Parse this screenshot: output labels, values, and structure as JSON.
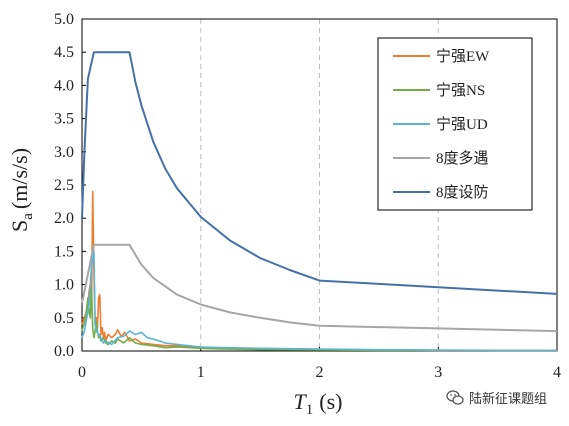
{
  "chart_data": {
    "type": "line",
    "xlabel_italic": "T",
    "xlabel_sub": "1",
    "xlabel_unit": "(s)",
    "ylabel_main": "S",
    "ylabel_sub": "a",
    "ylabel_unit": "(m/s/s)",
    "xlim": [
      0,
      4
    ],
    "ylim": [
      0,
      5
    ],
    "xticks": [
      "0",
      "1",
      "2",
      "3",
      "4"
    ],
    "yticks": [
      "0.0",
      "0.5",
      "1.0",
      "1.5",
      "2.0",
      "2.5",
      "3.0",
      "3.5",
      "4.0",
      "4.5",
      "5.0"
    ],
    "grid": true,
    "legend_position": "top-right",
    "series": [
      {
        "name": "宁强EW",
        "color": "#ED7D31",
        "x": [
          0,
          0.03,
          0.05,
          0.06,
          0.07,
          0.08,
          0.09,
          0.1,
          0.11,
          0.12,
          0.13,
          0.14,
          0.15,
          0.16,
          0.17,
          0.18,
          0.19,
          0.2,
          0.22,
          0.25,
          0.28,
          0.3,
          0.33,
          0.36,
          0.4,
          0.45,
          0.5,
          0.6,
          0.7,
          0.8,
          1.0,
          1.2,
          1.5,
          2.0,
          2.5,
          3.0,
          3.5,
          4.0
        ],
        "y": [
          0.4,
          0.55,
          0.7,
          0.9,
          1.0,
          0.6,
          2.4,
          1.2,
          0.4,
          0.5,
          0.35,
          0.8,
          0.85,
          0.25,
          0.35,
          0.2,
          0.28,
          0.15,
          0.25,
          0.2,
          0.25,
          0.32,
          0.22,
          0.28,
          0.15,
          0.18,
          0.12,
          0.1,
          0.08,
          0.08,
          0.05,
          0.04,
          0.03,
          0.02,
          0.015,
          0.01,
          0.01,
          0.01
        ]
      },
      {
        "name": "宁强NS",
        "color": "#70AD47",
        "x": [
          0,
          0.03,
          0.05,
          0.06,
          0.07,
          0.08,
          0.09,
          0.1,
          0.11,
          0.12,
          0.13,
          0.14,
          0.15,
          0.16,
          0.18,
          0.2,
          0.22,
          0.25,
          0.28,
          0.3,
          0.35,
          0.4,
          0.45,
          0.5,
          0.6,
          0.7,
          0.8,
          1.0,
          1.2,
          1.5,
          2.0,
          2.5,
          3.0,
          3.5,
          4.0
        ],
        "y": [
          0.3,
          0.5,
          0.8,
          0.6,
          0.5,
          0.95,
          0.35,
          0.2,
          0.3,
          0.45,
          0.3,
          0.2,
          0.25,
          0.15,
          0.2,
          0.12,
          0.1,
          0.15,
          0.12,
          0.18,
          0.12,
          0.2,
          0.12,
          0.1,
          0.08,
          0.05,
          0.06,
          0.04,
          0.03,
          0.02,
          0.015,
          0.01,
          0.01,
          0.01,
          0.01
        ]
      },
      {
        "name": "宁强UD",
        "color": "#5BB4D8",
        "x": [
          0,
          0.02,
          0.04,
          0.06,
          0.08,
          0.1,
          0.11,
          0.12,
          0.14,
          0.16,
          0.18,
          0.2,
          0.25,
          0.3,
          0.35,
          0.4,
          0.45,
          0.5,
          0.55,
          0.6,
          0.7,
          0.8,
          1.0,
          1.2,
          1.5,
          2.0,
          2.5,
          3.0,
          3.5,
          4.0
        ],
        "y": [
          0.2,
          0.3,
          0.5,
          0.7,
          1.3,
          1.5,
          0.4,
          0.3,
          0.25,
          0.2,
          0.12,
          0.15,
          0.1,
          0.2,
          0.22,
          0.3,
          0.25,
          0.28,
          0.2,
          0.18,
          0.12,
          0.1,
          0.06,
          0.05,
          0.04,
          0.03,
          0.02,
          0.015,
          0.01,
          0.01
        ]
      },
      {
        "name": "8度多遇",
        "color": "#A6A6A6",
        "x": [
          0,
          0.1,
          0.4,
          0.5,
          0.6,
          0.8,
          1.0,
          1.25,
          1.5,
          1.75,
          2.0,
          2.5,
          3.0,
          3.5,
          4.0
        ],
        "y": [
          0.72,
          1.6,
          1.6,
          1.3,
          1.1,
          0.85,
          0.7,
          0.58,
          0.5,
          0.43,
          0.38,
          0.36,
          0.34,
          0.32,
          0.3
        ]
      },
      {
        "name": "8度设防",
        "color": "#4472A8",
        "x": [
          0,
          0.02,
          0.05,
          0.1,
          0.4,
          0.45,
          0.5,
          0.6,
          0.7,
          0.8,
          1.0,
          1.25,
          1.5,
          1.75,
          2.0,
          2.5,
          3.0,
          3.5,
          4.0
        ],
        "y": [
          2.0,
          3.0,
          4.1,
          4.5,
          4.5,
          4.05,
          3.7,
          3.15,
          2.75,
          2.45,
          2.02,
          1.66,
          1.4,
          1.22,
          1.06,
          1.01,
          0.96,
          0.91,
          0.86
        ]
      }
    ]
  },
  "watermark": {
    "text": "陆新征课题组",
    "icon": "wechat-icon"
  }
}
